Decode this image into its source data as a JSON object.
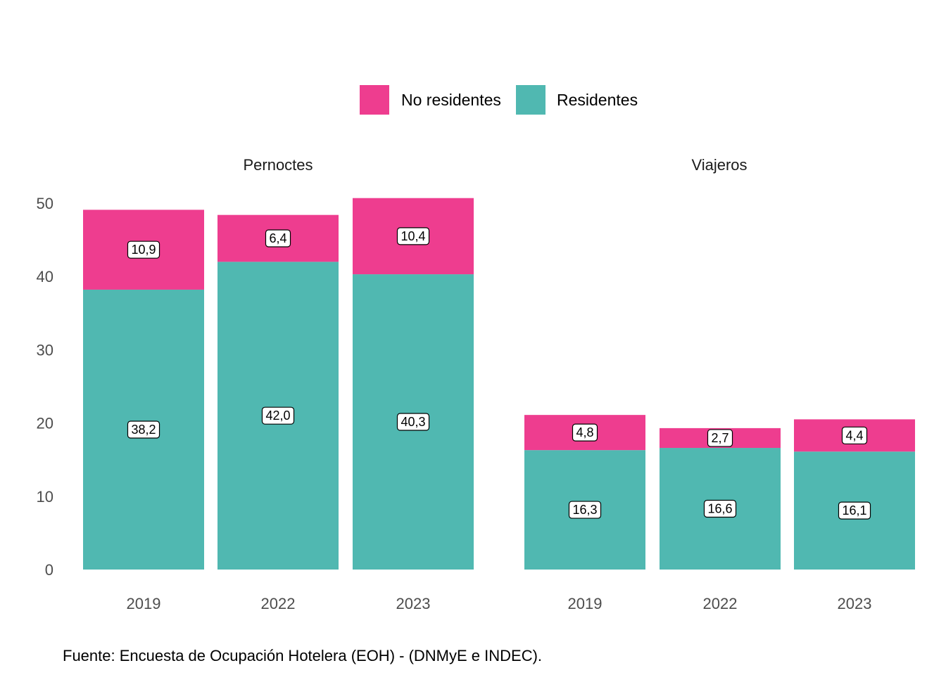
{
  "chart_data": {
    "type": "bar",
    "stacked": true,
    "legend": {
      "position": "top",
      "entries": [
        {
          "name": "No residentes",
          "color": "#EE3D8F"
        },
        {
          "name": "Residentes",
          "color": "#50B8B1"
        }
      ]
    },
    "ylim": [
      0,
      50
    ],
    "y_ticks": [
      "0",
      "10",
      "20",
      "30",
      "40",
      "50"
    ],
    "grid": false,
    "panels": [
      {
        "title": "Pernoctes",
        "categories": [
          "2019",
          "2022",
          "2023"
        ],
        "series": [
          {
            "name": "Residentes",
            "values": [
              38.2,
              42.0,
              40.3
            ],
            "labels": [
              "38,2",
              "42,0",
              "40,3"
            ]
          },
          {
            "name": "No residentes",
            "values": [
              10.9,
              6.4,
              10.4
            ],
            "labels": [
              "10,9",
              "6,4",
              "10,4"
            ]
          }
        ]
      },
      {
        "title": "Viajeros",
        "categories": [
          "2019",
          "2022",
          "2023"
        ],
        "series": [
          {
            "name": "Residentes",
            "values": [
              16.3,
              16.6,
              16.1
            ],
            "labels": [
              "16,3",
              "16,6",
              "16,1"
            ]
          },
          {
            "name": "No residentes",
            "values": [
              4.8,
              2.7,
              4.4
            ],
            "labels": [
              "4,8",
              "2,7",
              "4,4"
            ]
          }
        ]
      }
    ],
    "caption": "Fuente: Encuesta de Ocupación Hotelera (EOH) - (DNMyE e INDEC)."
  }
}
